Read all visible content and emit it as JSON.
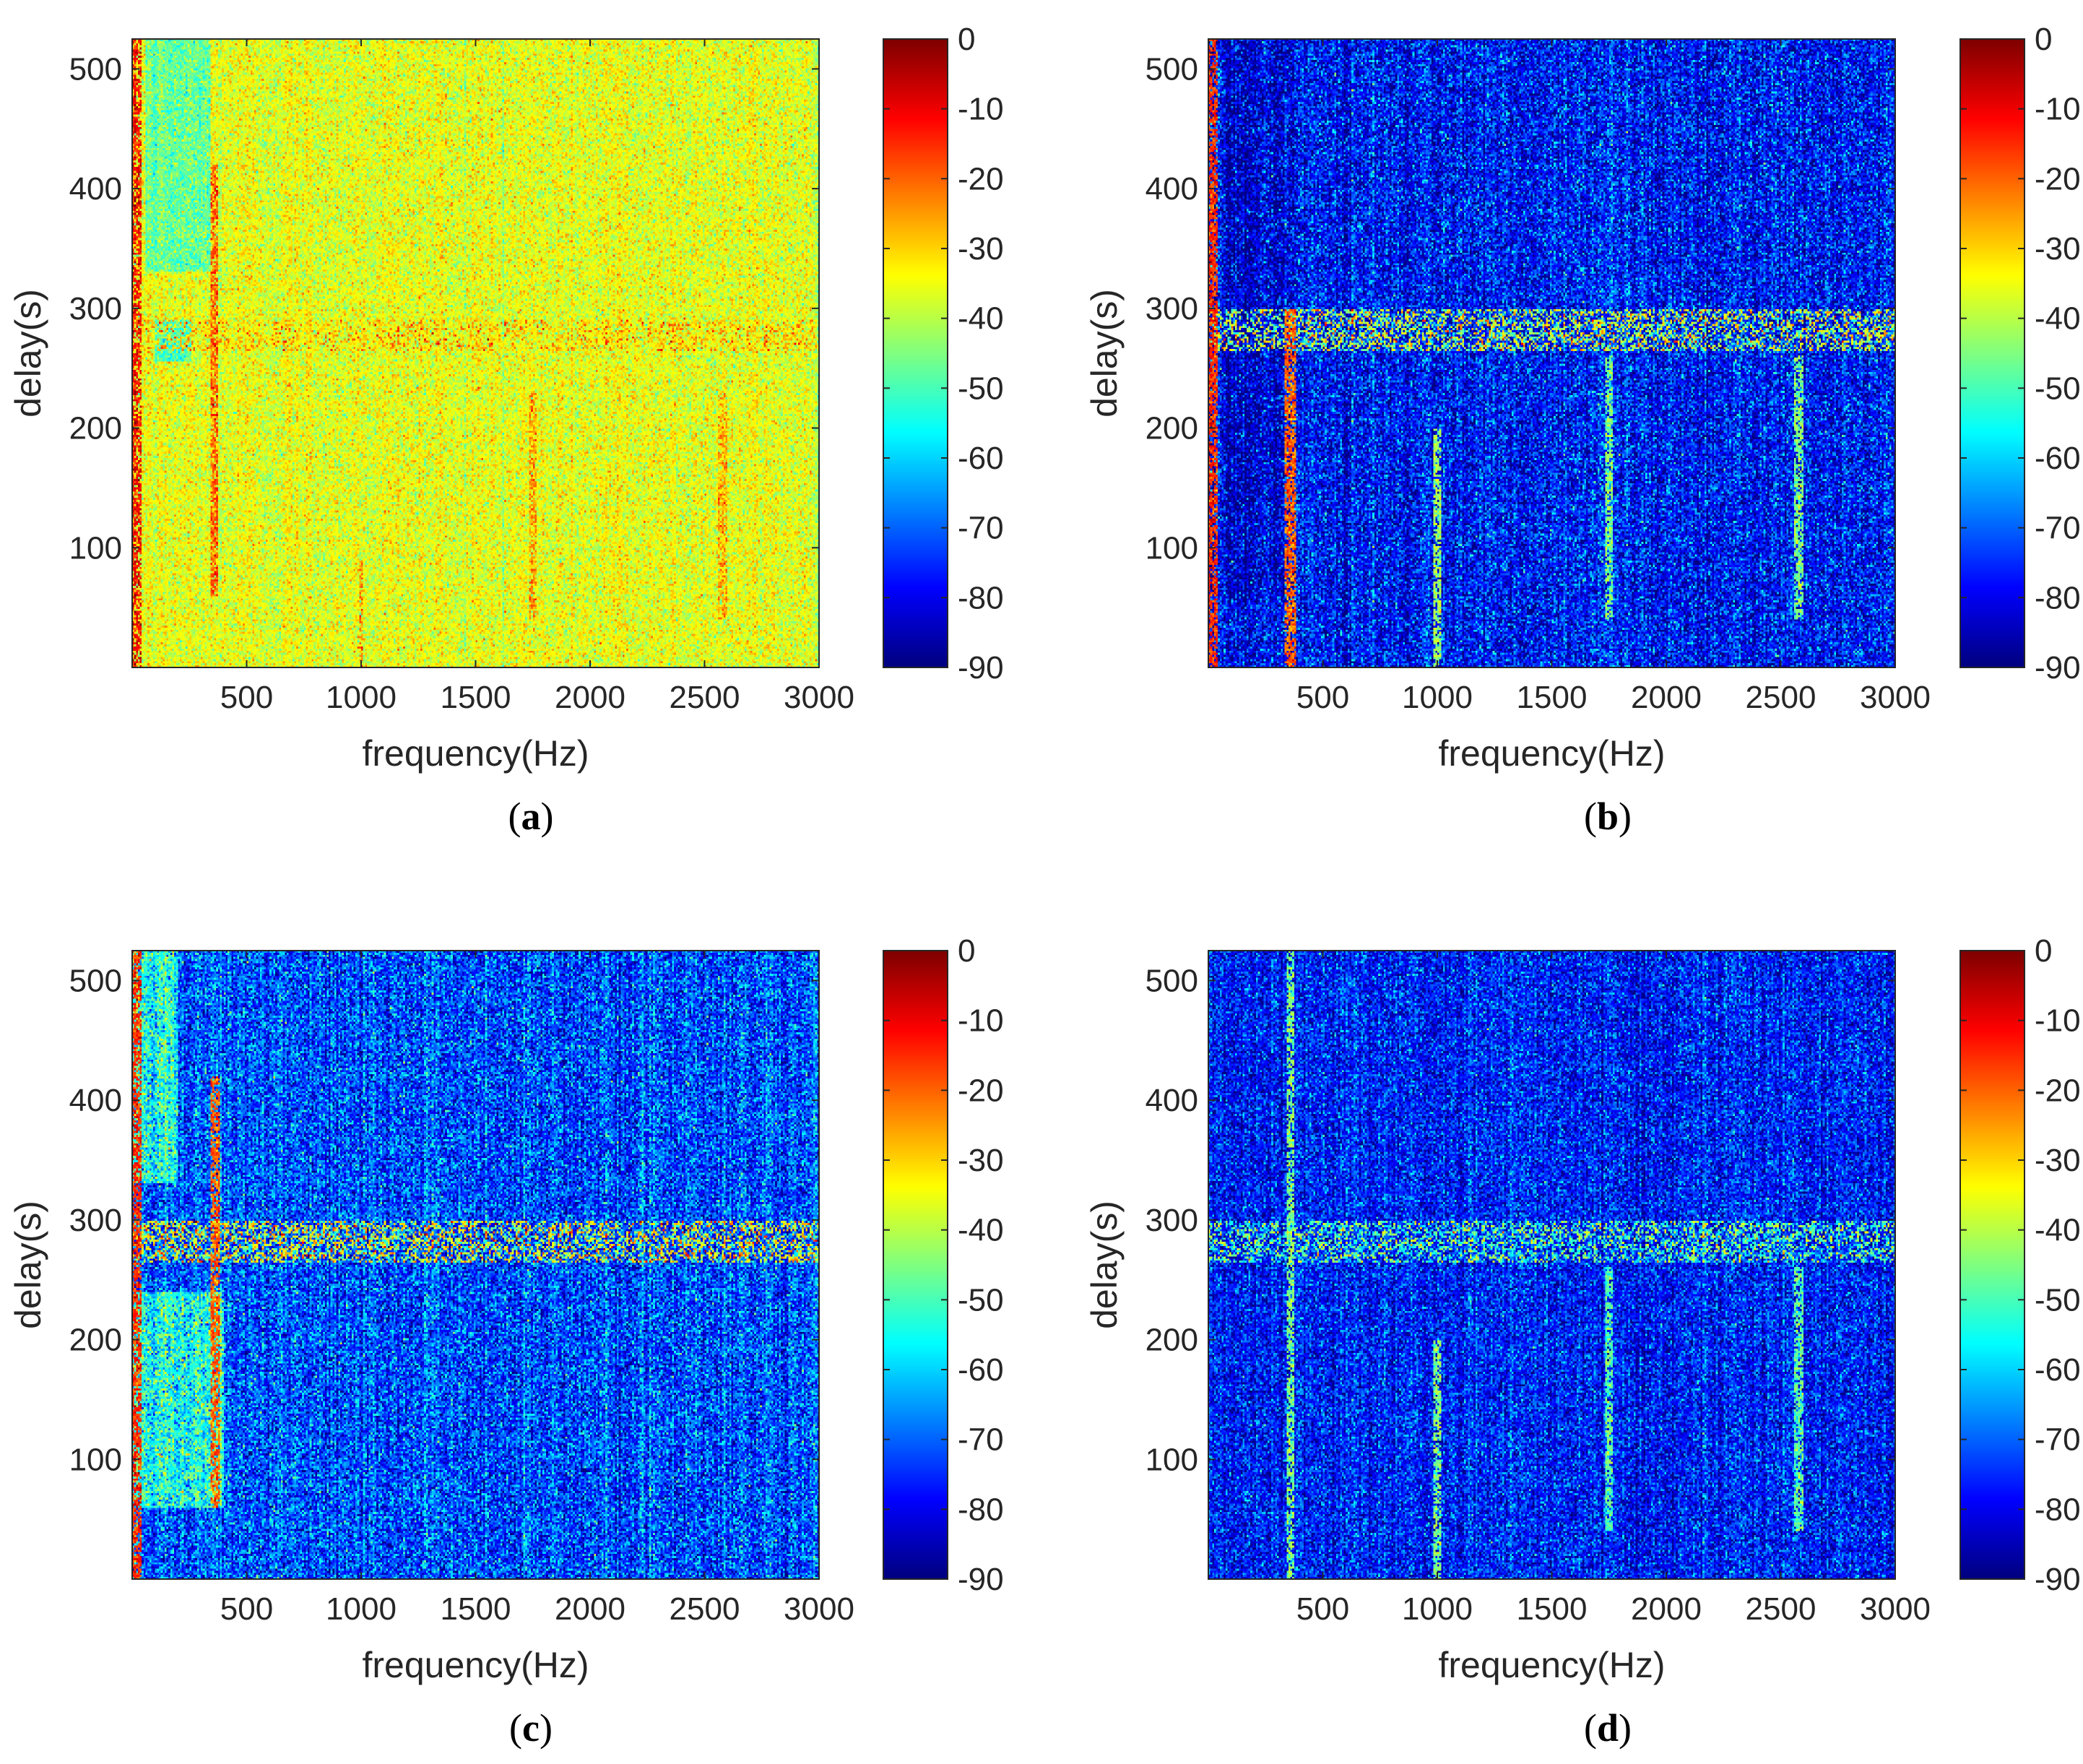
{
  "figure": {
    "description_colormap": "jet",
    "colors": {
      "axis": "#262626",
      "background": "#ffffff"
    }
  },
  "chart_data": [
    {
      "type": "heatmap",
      "panel": "a",
      "caption_letter": "a",
      "xlabel": "frequency(Hz)",
      "ylabel": "delay(s)",
      "xlim": [
        0,
        3000
      ],
      "ylim": [
        0,
        525
      ],
      "xticks": [
        500,
        1000,
        1500,
        2000,
        2500,
        3000
      ],
      "yticks": [
        100,
        200,
        300,
        400,
        500
      ],
      "colorbar": {
        "min": -90,
        "max": 0,
        "ticks": [
          0,
          -10,
          -20,
          -30,
          -40,
          -50,
          -60,
          -70,
          -80,
          -90
        ]
      },
      "base_level_db": -36,
      "noise_db": 5,
      "features": [
        {
          "kind": "vline",
          "freq": 10,
          "t0": 0,
          "t1": 525,
          "level": -12,
          "width": 30
        },
        {
          "kind": "vline",
          "freq": 360,
          "t0": 60,
          "t1": 420,
          "level": -20,
          "width": 15
        },
        {
          "kind": "vline",
          "freq": 1000,
          "t0": 0,
          "t1": 90,
          "level": -24,
          "width": 12
        },
        {
          "kind": "vline",
          "freq": 1750,
          "t0": 40,
          "t1": 230,
          "level": -25,
          "width": 20
        },
        {
          "kind": "vline",
          "freq": 2580,
          "t0": 40,
          "t1": 230,
          "level": -26,
          "width": 20
        },
        {
          "kind": "region",
          "f0": 60,
          "f1": 340,
          "t0": 330,
          "t1": 525,
          "level": -47
        },
        {
          "kind": "region",
          "f0": 100,
          "f1": 260,
          "t0": 255,
          "t1": 290,
          "level": -50
        },
        {
          "kind": "hband",
          "t0": 265,
          "t1": 290,
          "level": -30
        }
      ]
    },
    {
      "type": "heatmap",
      "panel": "b",
      "caption_letter": "b",
      "xlabel": "frequency(Hz)",
      "ylabel": "delay(s)",
      "xlim": [
        0,
        3000
      ],
      "ylim": [
        0,
        525
      ],
      "xticks": [
        500,
        1000,
        1500,
        2000,
        2500,
        3000
      ],
      "yticks": [
        100,
        200,
        300,
        400,
        500
      ],
      "colorbar": {
        "min": -90,
        "max": 0,
        "ticks": [
          0,
          -10,
          -20,
          -30,
          -40,
          -50,
          -60,
          -70,
          -80,
          -90
        ]
      },
      "base_level_db": -78,
      "noise_db": 9,
      "features": [
        {
          "kind": "vline",
          "freq": 10,
          "t0": 0,
          "t1": 525,
          "level": -15,
          "width": 30
        },
        {
          "kind": "vline",
          "freq": 360,
          "t0": 0,
          "t1": 300,
          "level": -20,
          "width": 25
        },
        {
          "kind": "vline",
          "freq": 1000,
          "t0": 0,
          "t1": 200,
          "level": -42,
          "width": 15
        },
        {
          "kind": "vline",
          "freq": 1750,
          "t0": 40,
          "t1": 260,
          "level": -45,
          "width": 20
        },
        {
          "kind": "vline",
          "freq": 2580,
          "t0": 40,
          "t1": 260,
          "level": -45,
          "width": 20
        },
        {
          "kind": "region",
          "f0": 50,
          "f1": 330,
          "t0": 60,
          "t1": 525,
          "level": -82
        },
        {
          "kind": "hband",
          "t0": 265,
          "t1": 300,
          "level": -40
        }
      ]
    },
    {
      "type": "heatmap",
      "panel": "c",
      "caption_letter": "c",
      "xlabel": "frequency(Hz)",
      "ylabel": "delay(s)",
      "xlim": [
        0,
        3000
      ],
      "ylim": [
        0,
        525
      ],
      "xticks": [
        500,
        1000,
        1500,
        2000,
        2500,
        3000
      ],
      "yticks": [
        100,
        200,
        300,
        400,
        500
      ],
      "colorbar": {
        "min": -90,
        "max": 0,
        "ticks": [
          0,
          -10,
          -20,
          -30,
          -40,
          -50,
          -60,
          -70,
          -80,
          -90
        ]
      },
      "base_level_db": -72,
      "noise_db": 9,
      "features": [
        {
          "kind": "vline",
          "freq": 10,
          "t0": 0,
          "t1": 525,
          "level": -15,
          "width": 30
        },
        {
          "kind": "vline",
          "freq": 360,
          "t0": 60,
          "t1": 420,
          "level": -20,
          "width": 20
        },
        {
          "kind": "region",
          "f0": 0,
          "f1": 400,
          "t0": 60,
          "t1": 240,
          "level": -55
        },
        {
          "kind": "region",
          "f0": 0,
          "f1": 200,
          "t0": 330,
          "t1": 525,
          "level": -55
        },
        {
          "kind": "hband",
          "t0": 265,
          "t1": 300,
          "level": -35
        }
      ]
    },
    {
      "type": "heatmap",
      "panel": "d",
      "caption_letter": "d",
      "xlabel": "frequency(Hz)",
      "ylabel": "delay(s)",
      "xlim": [
        0,
        3000
      ],
      "ylim": [
        0,
        525
      ],
      "xticks": [
        500,
        1000,
        1500,
        2000,
        2500,
        3000
      ],
      "yticks": [
        100,
        200,
        300,
        400,
        500
      ],
      "colorbar": {
        "min": -90,
        "max": 0,
        "ticks": [
          0,
          -10,
          -20,
          -30,
          -40,
          -50,
          -60,
          -70,
          -80,
          -90
        ]
      },
      "base_level_db": -77,
      "noise_db": 8,
      "features": [
        {
          "kind": "vline",
          "freq": 360,
          "t0": 0,
          "t1": 525,
          "level": -45,
          "width": 15
        },
        {
          "kind": "vline",
          "freq": 1000,
          "t0": 0,
          "t1": 200,
          "level": -45,
          "width": 15
        },
        {
          "kind": "vline",
          "freq": 1750,
          "t0": 40,
          "t1": 260,
          "level": -48,
          "width": 20
        },
        {
          "kind": "vline",
          "freq": 2580,
          "t0": 40,
          "t1": 260,
          "level": -48,
          "width": 20
        },
        {
          "kind": "hband",
          "t0": 265,
          "t1": 300,
          "level": -50
        }
      ]
    }
  ]
}
